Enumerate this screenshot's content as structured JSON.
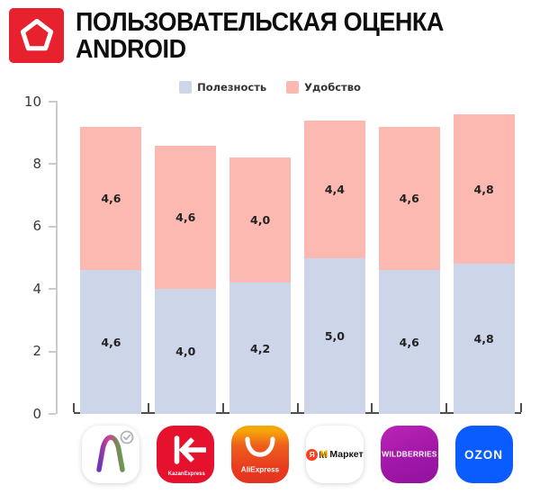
{
  "header": {
    "title_line1": "ПОЛЬЗОВАТЕЛЬСКАЯ ОЦЕНКА",
    "title_line2": "ANDROID",
    "logo_color": "#E8212E"
  },
  "legend": {
    "items": [
      {
        "label": "Полезность",
        "color": "#CDD5E9"
      },
      {
        "label": "Удобство",
        "color": "#FBB9B1"
      }
    ]
  },
  "chart_data": {
    "type": "bar",
    "stacked": true,
    "title": "Пользовательская оценка Android",
    "categories": [
      "Мегамаркет",
      "KazanExpress",
      "AliExpress",
      "Яндекс Маркет",
      "Wildberries",
      "OZON"
    ],
    "series": [
      {
        "name": "Полезность",
        "color": "#CDD5E9",
        "values": [
          4.6,
          4.0,
          4.2,
          5.0,
          4.6,
          4.8
        ],
        "labels": [
          "4,6",
          "4,0",
          "4,2",
          "5,0",
          "4,6",
          "4,8"
        ]
      },
      {
        "name": "Удобство",
        "color": "#FBB9B1",
        "values": [
          4.6,
          4.6,
          4.0,
          4.4,
          4.6,
          4.8
        ],
        "labels": [
          "4,6",
          "4,6",
          "4,0",
          "4,4",
          "4,6",
          "4,8"
        ]
      }
    ],
    "stack_totals": [
      9.2,
      8.6,
      8.2,
      9.4,
      9.2,
      9.6
    ],
    "ylim": [
      0,
      10
    ],
    "yticks": [
      0,
      2,
      4,
      6,
      8,
      10
    ],
    "ytick_labels": [
      "0",
      "2",
      "4",
      "6",
      "8",
      "10"
    ],
    "grid": false,
    "legend_position": "top"
  },
  "icons": {
    "megamarket": {
      "name": "Мегамаркет"
    },
    "kazanexpress": {
      "label": "KazanExpress"
    },
    "aliexpress": {
      "label": "AliExpress"
    },
    "yandex_market": {
      "ya": "Я",
      "m": "М",
      "label": "Маркет"
    },
    "wildberries": {
      "label": "WILDBERRIES"
    },
    "ozon": {
      "label": "OZON"
    }
  },
  "colors": {
    "usefulness": "#CDD5E9",
    "convenience": "#FBB9B1",
    "x_axis": "#4F4F4F",
    "y_axis": "#CBCBCB",
    "header_logo": "#E8212E"
  }
}
